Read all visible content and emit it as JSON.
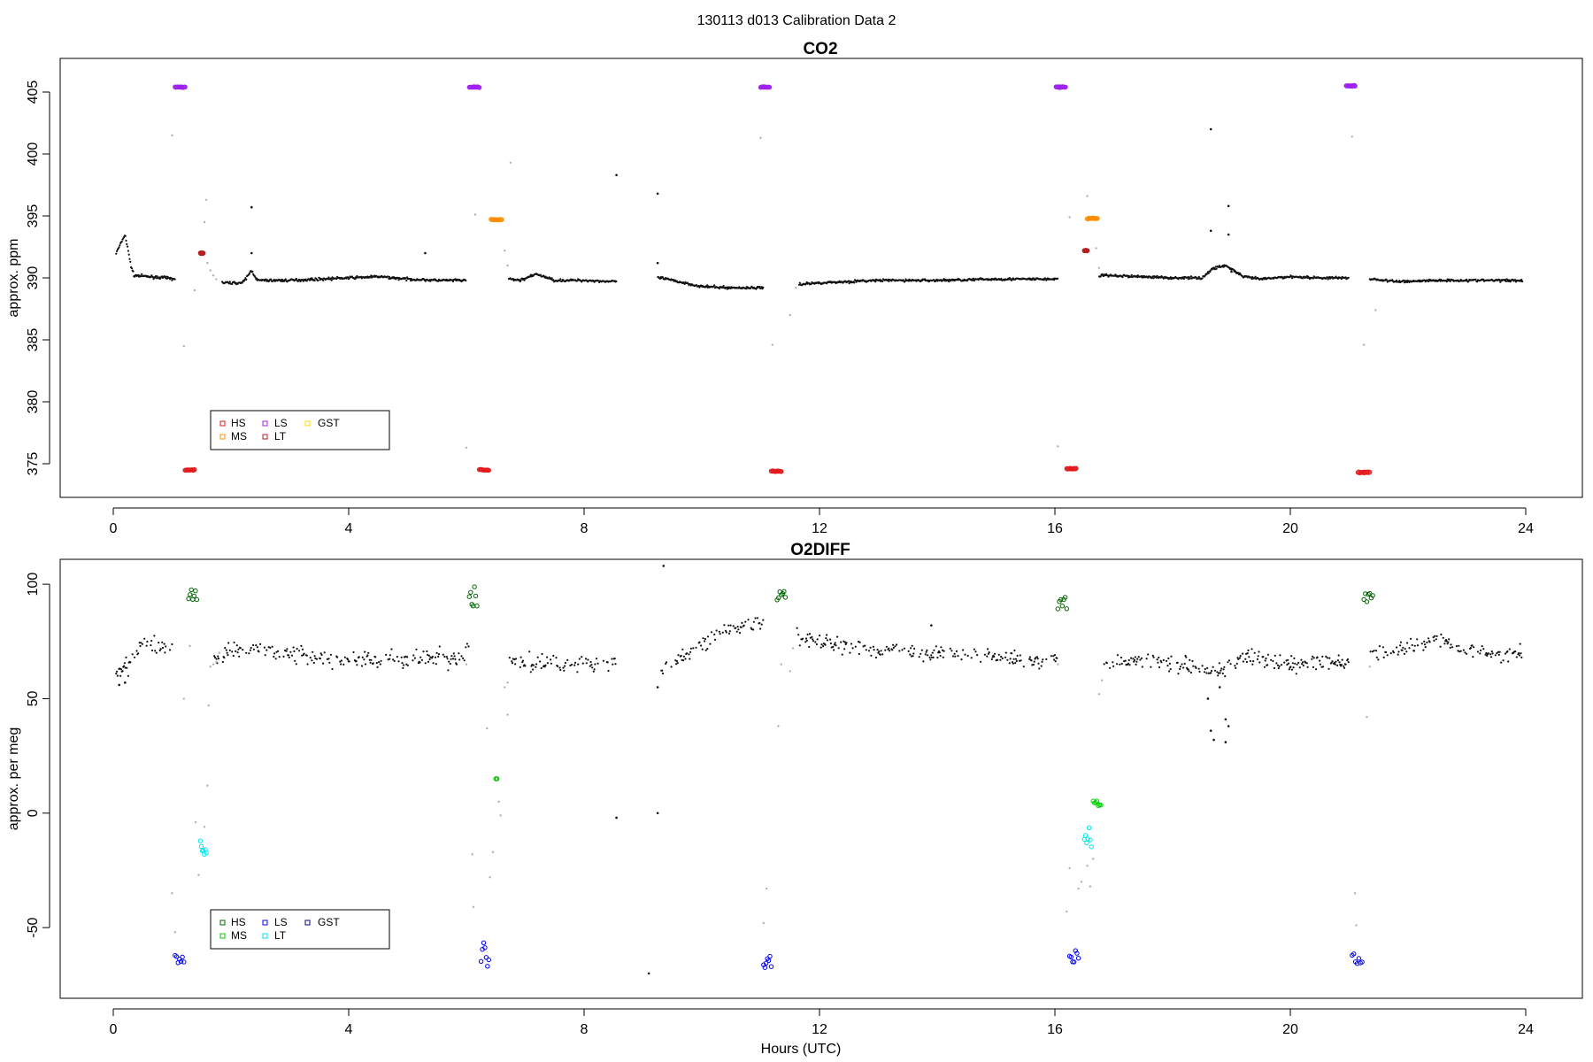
{
  "figure": {
    "title": "130113   d013   Calibration Data 2",
    "xlabel": "Hours (UTC)"
  },
  "chart_data": [
    {
      "type": "scatter",
      "title": "CO2",
      "xlabel": "",
      "ylabel": "approx. ppm",
      "xlim": [
        0,
        24
      ],
      "ylim": [
        373,
        407
      ],
      "xticks": [
        0,
        4,
        8,
        12,
        16,
        20,
        24
      ],
      "yticks": [
        375,
        380,
        385,
        390,
        395,
        400,
        405
      ],
      "grid": false,
      "legend": {
        "placement": "lower-left",
        "entries": [
          {
            "name": "HS",
            "color": "#e31a1c"
          },
          {
            "name": "MS",
            "color": "#ff8c00"
          },
          {
            "name": "LS",
            "color": "#a020f0"
          },
          {
            "name": "LT",
            "color": "#b22222"
          },
          {
            "name": "GST",
            "color": "#ffd700"
          }
        ]
      },
      "baseline": [
        {
          "x": 0.05,
          "y": 392.0
        },
        {
          "x": 0.2,
          "y": 393.5
        },
        {
          "x": 0.3,
          "y": 391.0
        },
        {
          "x": 0.35,
          "y": 390.2
        },
        {
          "x": 0.6,
          "y": 390.1
        },
        {
          "x": 0.9,
          "y": 390.0
        },
        {
          "x": 1.05,
          "y": 389.9
        },
        {
          "x": 1.9,
          "y": 389.6
        },
        {
          "x": 2.2,
          "y": 389.6
        },
        {
          "x": 2.35,
          "y": 390.6
        },
        {
          "x": 2.45,
          "y": 389.8
        },
        {
          "x": 3.0,
          "y": 389.8
        },
        {
          "x": 3.5,
          "y": 389.9
        },
        {
          "x": 4.0,
          "y": 390.0
        },
        {
          "x": 4.5,
          "y": 390.1
        },
        {
          "x": 5.0,
          "y": 389.9
        },
        {
          "x": 5.5,
          "y": 389.8
        },
        {
          "x": 6.0,
          "y": 389.8
        },
        {
          "x": 6.75,
          "y": 389.9
        },
        {
          "x": 6.9,
          "y": 389.8
        },
        {
          "x": 7.2,
          "y": 390.3
        },
        {
          "x": 7.5,
          "y": 389.8
        },
        {
          "x": 8.0,
          "y": 389.8
        },
        {
          "x": 8.5,
          "y": 389.7
        },
        {
          "x": 9.3,
          "y": 390.0
        },
        {
          "x": 9.7,
          "y": 389.6
        },
        {
          "x": 10.0,
          "y": 389.3
        },
        {
          "x": 10.5,
          "y": 389.2
        },
        {
          "x": 11.0,
          "y": 389.2
        },
        {
          "x": 11.7,
          "y": 389.5
        },
        {
          "x": 12.0,
          "y": 389.6
        },
        {
          "x": 13.0,
          "y": 389.8
        },
        {
          "x": 14.0,
          "y": 389.8
        },
        {
          "x": 15.0,
          "y": 389.9
        },
        {
          "x": 16.0,
          "y": 389.9
        },
        {
          "x": 16.8,
          "y": 390.2
        },
        {
          "x": 17.5,
          "y": 390.1
        },
        {
          "x": 18.0,
          "y": 390.0
        },
        {
          "x": 18.5,
          "y": 390.0
        },
        {
          "x": 18.7,
          "y": 390.8
        },
        {
          "x": 18.9,
          "y": 391.0
        },
        {
          "x": 19.2,
          "y": 390.1
        },
        {
          "x": 19.5,
          "y": 389.9
        },
        {
          "x": 20.0,
          "y": 390.1
        },
        {
          "x": 20.5,
          "y": 390.0
        },
        {
          "x": 21.0,
          "y": 390.0
        },
        {
          "x": 21.4,
          "y": 389.9
        },
        {
          "x": 21.8,
          "y": 389.7
        },
        {
          "x": 22.5,
          "y": 389.8
        },
        {
          "x": 23.0,
          "y": 389.8
        },
        {
          "x": 23.95,
          "y": 389.8
        }
      ],
      "gaps": [
        [
          1.05,
          1.85
        ],
        [
          6.0,
          6.72
        ],
        [
          8.55,
          9.25
        ],
        [
          11.05,
          11.65
        ],
        [
          16.05,
          16.75
        ],
        [
          21.0,
          21.35
        ]
      ],
      "noise": 0.1,
      "outliers": [
        {
          "x": 2.35,
          "y": 395.7
        },
        {
          "x": 2.35,
          "y": 392.0
        },
        {
          "x": 5.3,
          "y": 392.0
        },
        {
          "x": 8.55,
          "y": 398.3
        },
        {
          "x": 9.25,
          "y": 396.8
        },
        {
          "x": 9.25,
          "y": 391.2
        },
        {
          "x": 18.65,
          "y": 402.0
        },
        {
          "x": 18.65,
          "y": 393.8
        },
        {
          "x": 18.95,
          "y": 395.8
        },
        {
          "x": 18.95,
          "y": 393.5
        },
        {
          "x": 19.0,
          "y": 390.5
        }
      ],
      "transitions": [
        {
          "x": 1.0,
          "y": 401.5
        },
        {
          "x": 1.2,
          "y": 384.5
        },
        {
          "x": 1.38,
          "y": 389.0
        },
        {
          "x": 1.55,
          "y": 394.5
        },
        {
          "x": 1.58,
          "y": 396.3
        },
        {
          "x": 1.6,
          "y": 391.2
        },
        {
          "x": 1.65,
          "y": 390.6
        },
        {
          "x": 1.7,
          "y": 390.2
        },
        {
          "x": 1.75,
          "y": 389.9
        },
        {
          "x": 6.0,
          "y": 376.3
        },
        {
          "x": 6.15,
          "y": 395.1
        },
        {
          "x": 6.65,
          "y": 392.2
        },
        {
          "x": 6.7,
          "y": 391.0
        },
        {
          "x": 6.75,
          "y": 399.3
        },
        {
          "x": 11.0,
          "y": 401.3
        },
        {
          "x": 11.2,
          "y": 384.6
        },
        {
          "x": 11.5,
          "y": 387.0
        },
        {
          "x": 11.6,
          "y": 389.2
        },
        {
          "x": 16.05,
          "y": 376.4
        },
        {
          "x": 16.25,
          "y": 394.9
        },
        {
          "x": 16.55,
          "y": 396.6
        },
        {
          "x": 16.7,
          "y": 392.4
        },
        {
          "x": 16.75,
          "y": 390.8
        },
        {
          "x": 21.05,
          "y": 401.4
        },
        {
          "x": 21.25,
          "y": 384.6
        },
        {
          "x": 21.45,
          "y": 387.4
        }
      ],
      "standards": [
        {
          "name": "LS",
          "color": "#a020f0",
          "x0": 1.05,
          "x1": 1.22,
          "y": 405.4
        },
        {
          "name": "HS",
          "color": "#e31a1c",
          "x0": 1.22,
          "x1": 1.38,
          "y": 374.5
        },
        {
          "name": "LT",
          "color": "#b22222",
          "x0": 1.48,
          "x1": 1.53,
          "y": 392.0
        },
        {
          "name": "LS",
          "color": "#a020f0",
          "x0": 6.05,
          "x1": 6.22,
          "y": 405.4
        },
        {
          "name": "HS",
          "color": "#e31a1c",
          "x0": 6.22,
          "x1": 6.38,
          "y": 374.5
        },
        {
          "name": "MS",
          "color": "#ff8c00",
          "x0": 6.42,
          "x1": 6.6,
          "y": 394.7
        },
        {
          "name": "LS",
          "color": "#a020f0",
          "x0": 11.0,
          "x1": 11.15,
          "y": 405.4
        },
        {
          "name": "HS",
          "color": "#e31a1c",
          "x0": 11.18,
          "x1": 11.35,
          "y": 374.4
        },
        {
          "name": "LS",
          "color": "#a020f0",
          "x0": 16.02,
          "x1": 16.18,
          "y": 405.4
        },
        {
          "name": "HS",
          "color": "#e31a1c",
          "x0": 16.2,
          "x1": 16.36,
          "y": 374.6
        },
        {
          "name": "LT",
          "color": "#b22222",
          "x0": 16.5,
          "x1": 16.55,
          "y": 392.2
        },
        {
          "name": "MS",
          "color": "#ff8c00",
          "x0": 16.55,
          "x1": 16.72,
          "y": 394.8
        },
        {
          "name": "LS",
          "color": "#a020f0",
          "x0": 20.95,
          "x1": 21.1,
          "y": 405.5
        },
        {
          "name": "HS",
          "color": "#e31a1c",
          "x0": 21.15,
          "x1": 21.35,
          "y": 374.3
        }
      ]
    },
    {
      "type": "scatter",
      "title": "O2DIFF",
      "xlabel": "Hours (UTC)",
      "ylabel": "approx. per meg",
      "xlim": [
        0,
        24
      ],
      "ylim": [
        -77,
        107
      ],
      "xticks": [
        0,
        4,
        8,
        12,
        16,
        20,
        24
      ],
      "yticks": [
        -50,
        0,
        50,
        100
      ],
      "grid": false,
      "legend": {
        "placement": "lower-left",
        "entries": [
          {
            "name": "HS",
            "color": "#006400"
          },
          {
            "name": "MS",
            "color": "#00cd00"
          },
          {
            "name": "LS",
            "color": "#0000ff"
          },
          {
            "name": "LT",
            "color": "#00e5ee"
          },
          {
            "name": "GST",
            "color": "#00008b"
          }
        ]
      },
      "baseline": [
        {
          "x": 0.05,
          "y": 60
        },
        {
          "x": 0.3,
          "y": 66
        },
        {
          "x": 0.5,
          "y": 74
        },
        {
          "x": 0.8,
          "y": 73
        },
        {
          "x": 1.0,
          "y": 73
        },
        {
          "x": 1.7,
          "y": 67
        },
        {
          "x": 2.0,
          "y": 71
        },
        {
          "x": 2.5,
          "y": 72
        },
        {
          "x": 3.0,
          "y": 70
        },
        {
          "x": 3.5,
          "y": 68
        },
        {
          "x": 4.0,
          "y": 67
        },
        {
          "x": 4.5,
          "y": 67
        },
        {
          "x": 5.0,
          "y": 67
        },
        {
          "x": 5.5,
          "y": 68
        },
        {
          "x": 5.9,
          "y": 67
        },
        {
          "x": 6.05,
          "y": 72
        },
        {
          "x": 6.75,
          "y": 67
        },
        {
          "x": 7.0,
          "y": 66
        },
        {
          "x": 7.5,
          "y": 65
        },
        {
          "x": 8.0,
          "y": 65
        },
        {
          "x": 8.5,
          "y": 65
        },
        {
          "x": 9.3,
          "y": 63
        },
        {
          "x": 9.8,
          "y": 70
        },
        {
          "x": 10.3,
          "y": 78
        },
        {
          "x": 10.7,
          "y": 82
        },
        {
          "x": 11.0,
          "y": 82
        },
        {
          "x": 11.6,
          "y": 77
        },
        {
          "x": 12.0,
          "y": 75
        },
        {
          "x": 13.0,
          "y": 71
        },
        {
          "x": 14.0,
          "y": 70
        },
        {
          "x": 15.0,
          "y": 68
        },
        {
          "x": 16.0,
          "y": 67
        },
        {
          "x": 16.8,
          "y": 66
        },
        {
          "x": 17.5,
          "y": 67
        },
        {
          "x": 18.0,
          "y": 66
        },
        {
          "x": 18.5,
          "y": 64
        },
        {
          "x": 18.8,
          "y": 62
        },
        {
          "x": 19.2,
          "y": 68
        },
        {
          "x": 20.0,
          "y": 65
        },
        {
          "x": 20.5,
          "y": 66
        },
        {
          "x": 21.0,
          "y": 66
        },
        {
          "x": 21.35,
          "y": 68
        },
        {
          "x": 22.0,
          "y": 73
        },
        {
          "x": 22.5,
          "y": 76
        },
        {
          "x": 23.0,
          "y": 72
        },
        {
          "x": 23.5,
          "y": 69
        },
        {
          "x": 23.95,
          "y": 70
        }
      ],
      "gaps": [
        [
          1.0,
          1.7
        ],
        [
          6.05,
          6.72
        ],
        [
          8.55,
          9.3
        ],
        [
          11.05,
          11.6
        ],
        [
          16.05,
          16.8
        ],
        [
          21.0,
          21.35
        ]
      ],
      "noise": 3.5,
      "outliers": [
        {
          "x": 0.1,
          "y": 56
        },
        {
          "x": 0.2,
          "y": 57
        },
        {
          "x": 8.55,
          "y": -2
        },
        {
          "x": 9.25,
          "y": 55
        },
        {
          "x": 9.25,
          "y": 0
        },
        {
          "x": 9.1,
          "y": -70
        },
        {
          "x": 9.35,
          "y": 108
        },
        {
          "x": 13.9,
          "y": 82
        },
        {
          "x": 18.6,
          "y": 50
        },
        {
          "x": 18.65,
          "y": 36
        },
        {
          "x": 18.7,
          "y": 32
        },
        {
          "x": 18.8,
          "y": 55
        },
        {
          "x": 18.9,
          "y": 41
        },
        {
          "x": 18.9,
          "y": 31
        },
        {
          "x": 18.95,
          "y": 38
        }
      ],
      "transitions": [
        {
          "x": 1.0,
          "y": -35
        },
        {
          "x": 1.05,
          "y": -52
        },
        {
          "x": 1.2,
          "y": 50
        },
        {
          "x": 1.3,
          "y": 73
        },
        {
          "x": 1.4,
          "y": -4
        },
        {
          "x": 1.45,
          "y": -27
        },
        {
          "x": 1.55,
          "y": -6
        },
        {
          "x": 1.6,
          "y": 12
        },
        {
          "x": 1.62,
          "y": 47
        },
        {
          "x": 1.65,
          "y": 64
        },
        {
          "x": 1.7,
          "y": 65
        },
        {
          "x": 1.75,
          "y": 66
        },
        {
          "x": 1.8,
          "y": 70
        },
        {
          "x": 6.0,
          "y": 65
        },
        {
          "x": 6.1,
          "y": -18
        },
        {
          "x": 6.12,
          "y": -41
        },
        {
          "x": 6.35,
          "y": 37
        },
        {
          "x": 6.4,
          "y": -28
        },
        {
          "x": 6.45,
          "y": -17
        },
        {
          "x": 6.55,
          "y": 5
        },
        {
          "x": 6.58,
          "y": -1
        },
        {
          "x": 6.65,
          "y": 55
        },
        {
          "x": 6.7,
          "y": 43
        },
        {
          "x": 6.7,
          "y": 57
        },
        {
          "x": 11.1,
          "y": -33
        },
        {
          "x": 11.05,
          "y": -48
        },
        {
          "x": 11.3,
          "y": 38
        },
        {
          "x": 11.35,
          "y": 65
        },
        {
          "x": 11.5,
          "y": 62
        },
        {
          "x": 11.55,
          "y": 72
        },
        {
          "x": 16.05,
          "y": 65
        },
        {
          "x": 16.2,
          "y": -43
        },
        {
          "x": 16.25,
          "y": -24
        },
        {
          "x": 16.4,
          "y": -33
        },
        {
          "x": 16.45,
          "y": -30
        },
        {
          "x": 16.55,
          "y": -23
        },
        {
          "x": 16.6,
          "y": -32
        },
        {
          "x": 16.65,
          "y": -20
        },
        {
          "x": 16.75,
          "y": 52
        },
        {
          "x": 16.8,
          "y": 58
        },
        {
          "x": 21.1,
          "y": -35
        },
        {
          "x": 21.12,
          "y": -49
        },
        {
          "x": 21.3,
          "y": 42
        },
        {
          "x": 21.35,
          "y": 64
        }
      ],
      "standards": [
        {
          "name": "LS",
          "color": "#0000ff",
          "x0": 1.05,
          "x1": 1.2,
          "y0": -68,
          "y1": -62
        },
        {
          "name": "HS",
          "color": "#006400",
          "x0": 1.28,
          "x1": 1.42,
          "y0": 92,
          "y1": 98
        },
        {
          "name": "LT",
          "color": "#00e5ee",
          "x0": 1.48,
          "x1": 1.58,
          "y0": -18,
          "y1": -12
        },
        {
          "name": "LS",
          "color": "#0000ff",
          "x0": 6.25,
          "x1": 6.38,
          "y0": -67,
          "y1": -53
        },
        {
          "name": "HS",
          "color": "#006400",
          "x0": 6.05,
          "x1": 6.18,
          "y0": 88,
          "y1": 100
        },
        {
          "name": "MS",
          "color": "#00cd00",
          "x0": 6.5,
          "x1": 6.52,
          "y0": 15,
          "y1": 15
        },
        {
          "name": "LS",
          "color": "#0000ff",
          "x0": 11.05,
          "x1": 11.18,
          "y0": -70,
          "y1": -62
        },
        {
          "name": "HS",
          "color": "#006400",
          "x0": 11.28,
          "x1": 11.42,
          "y0": 93,
          "y1": 97
        },
        {
          "name": "LS",
          "color": "#0000ff",
          "x0": 16.25,
          "x1": 16.4,
          "y0": -66,
          "y1": -60
        },
        {
          "name": "HS",
          "color": "#006400",
          "x0": 16.05,
          "x1": 16.2,
          "y0": 89,
          "y1": 95
        },
        {
          "name": "LT",
          "color": "#00e5ee",
          "x0": 16.5,
          "x1": 16.62,
          "y0": -15,
          "y1": -5
        },
        {
          "name": "MS",
          "color": "#00cd00",
          "x0": 16.65,
          "x1": 16.78,
          "y0": 3,
          "y1": 6
        },
        {
          "name": "LS",
          "color": "#0000ff",
          "x0": 21.05,
          "x1": 21.22,
          "y0": -68,
          "y1": -60
        },
        {
          "name": "HS",
          "color": "#006400",
          "x0": 21.25,
          "x1": 21.4,
          "y0": 92,
          "y1": 96
        }
      ]
    }
  ]
}
